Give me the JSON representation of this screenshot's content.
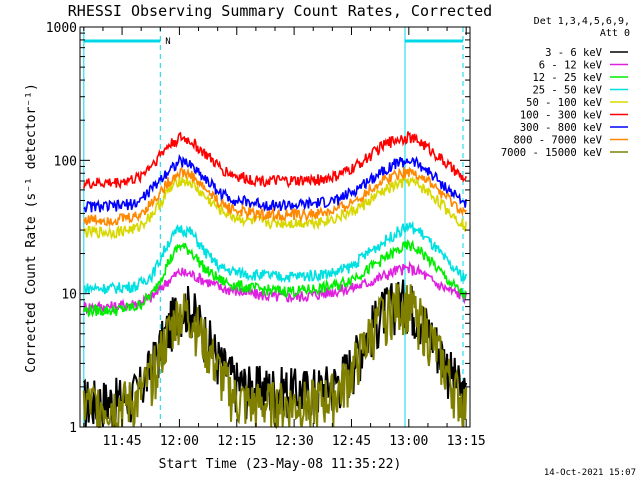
{
  "chart_data": {
    "type": "line",
    "title": "RHESSI Observing Summary Count Rates, Corrected",
    "xlabel": "Start Time (23-May-08 11:35:22)",
    "ylabel": "Corrected Count Rate (s⁻¹ detector⁻¹)",
    "yscale": "log",
    "ylim": [
      1,
      1000
    ],
    "xlim_minutes": [
      -1,
      101
    ],
    "x_ticks": [
      {
        "label": "11:45",
        "min": 10
      },
      {
        "label": "12:00",
        "min": 25
      },
      {
        "label": "12:15",
        "min": 40
      },
      {
        "label": "12:30",
        "min": 55
      },
      {
        "label": "12:45",
        "min": 70
      },
      {
        "label": "13:00",
        "min": 85
      },
      {
        "label": "13:15",
        "min": 100
      }
    ],
    "y_ticks": [
      {
        "label": "1",
        "value": 1
      },
      {
        "label": "10",
        "value": 10
      },
      {
        "label": "100",
        "value": 100
      },
      {
        "label": "1000",
        "value": 1000
      }
    ],
    "legend_header": [
      "Det 1,3,4,5,6,9,",
      "Att 0"
    ],
    "legend_position": "right",
    "interval_markers": [
      {
        "label": "N",
        "start_min": 0,
        "end_min": 20
      },
      {
        "label": "",
        "start_min": 84,
        "end_min": 102
      }
    ],
    "series": [
      {
        "name": "3 - 6 keV",
        "color": "#000000",
        "x": [
          0,
          8,
          14,
          18,
          22,
          25,
          28,
          32,
          36,
          40,
          44,
          50,
          56,
          62,
          66,
          70,
          74,
          78,
          82,
          85,
          88,
          92,
          96,
          100
        ],
        "values": [
          1.6,
          1.6,
          1.8,
          3.0,
          5.5,
          8.5,
          8.0,
          5.0,
          3.0,
          2.2,
          2.0,
          2.0,
          1.9,
          2.0,
          2.2,
          3.0,
          5.0,
          7.5,
          9.0,
          9.0,
          7.0,
          4.5,
          2.6,
          1.6
        ]
      },
      {
        "name": "6 - 12 keV",
        "color": "#e020e0",
        "x": [
          0,
          8,
          14,
          18,
          22,
          25,
          28,
          32,
          36,
          40,
          44,
          50,
          56,
          62,
          66,
          70,
          74,
          78,
          82,
          85,
          88,
          92,
          96,
          100
        ],
        "values": [
          8.0,
          8.0,
          8.5,
          9.5,
          12.5,
          14.5,
          14.0,
          12.5,
          11.0,
          10.5,
          10.0,
          9.5,
          9.5,
          10.0,
          10.5,
          11.0,
          12.0,
          13.5,
          15.0,
          15.5,
          14.5,
          12.0,
          10.5,
          9.5
        ]
      },
      {
        "name": "12 - 25 keV",
        "color": "#00ee00",
        "x": [
          0,
          8,
          14,
          18,
          22,
          25,
          28,
          32,
          36,
          40,
          44,
          50,
          56,
          62,
          66,
          70,
          74,
          78,
          82,
          85,
          88,
          92,
          96,
          100
        ],
        "values": [
          7.5,
          7.5,
          8.0,
          10.0,
          17.0,
          23.0,
          21.0,
          15.0,
          12.5,
          11.5,
          11.0,
          10.5,
          10.5,
          11.0,
          11.5,
          13.0,
          15.0,
          18.0,
          21.0,
          23.0,
          21.0,
          16.0,
          12.0,
          9.5
        ]
      },
      {
        "name": "25 - 50 keV",
        "color": "#00e0e0",
        "x": [
          0,
          8,
          14,
          18,
          22,
          25,
          28,
          32,
          36,
          40,
          44,
          50,
          56,
          62,
          66,
          70,
          74,
          78,
          82,
          85,
          88,
          92,
          96,
          100
        ],
        "values": [
          11.0,
          11.0,
          11.5,
          14.0,
          24.0,
          31.0,
          29.0,
          20.0,
          15.5,
          14.5,
          14.0,
          13.5,
          13.5,
          14.0,
          14.5,
          16.0,
          20.0,
          24.0,
          29.0,
          32.0,
          29.0,
          22.0,
          16.0,
          13.0
        ]
      },
      {
        "name": "50 - 100 keV",
        "color": "#d8d800",
        "x": [
          0,
          8,
          14,
          18,
          22,
          25,
          28,
          32,
          36,
          40,
          44,
          50,
          56,
          62,
          66,
          70,
          74,
          78,
          82,
          85,
          88,
          92,
          96,
          100
        ],
        "values": [
          29,
          29,
          31,
          40,
          58,
          72,
          68,
          52,
          42,
          37,
          35,
          34,
          34,
          35,
          37,
          41,
          48,
          58,
          66,
          70,
          64,
          52,
          40,
          32
        ]
      },
      {
        "name": "100 - 300 keV",
        "color": "#ff0000",
        "x": [
          0,
          8,
          14,
          18,
          22,
          25,
          28,
          32,
          36,
          40,
          44,
          50,
          56,
          62,
          66,
          70,
          74,
          78,
          82,
          85,
          88,
          92,
          96,
          100
        ],
        "values": [
          67,
          68,
          73,
          95,
          128,
          148,
          140,
          110,
          86,
          76,
          72,
          70,
          70,
          72,
          76,
          86,
          104,
          128,
          146,
          150,
          138,
          112,
          88,
          70
        ]
      },
      {
        "name": "300 - 800 keV",
        "color": "#0000ff",
        "x": [
          0,
          8,
          14,
          18,
          22,
          25,
          28,
          32,
          36,
          40,
          44,
          50,
          56,
          62,
          66,
          70,
          74,
          78,
          82,
          85,
          88,
          92,
          96,
          100
        ],
        "values": [
          45,
          45,
          48,
          62,
          84,
          98,
          93,
          72,
          56,
          50,
          48,
          46,
          46,
          48,
          50,
          57,
          69,
          84,
          96,
          100,
          92,
          74,
          58,
          47
        ]
      },
      {
        "name": "800 - 7000 keV",
        "color": "#ff8800",
        "x": [
          0,
          8,
          14,
          18,
          22,
          25,
          28,
          32,
          36,
          40,
          44,
          50,
          56,
          62,
          66,
          70,
          74,
          78,
          82,
          85,
          88,
          92,
          96,
          100
        ],
        "values": [
          36,
          36,
          38,
          49,
          68,
          82,
          78,
          60,
          47,
          42,
          40,
          39,
          39,
          40,
          42,
          48,
          58,
          70,
          80,
          83,
          77,
          62,
          49,
          39
        ]
      },
      {
        "name": "7000 - 15000 keV",
        "color": "#808000",
        "x": [
          0,
          8,
          14,
          18,
          22,
          25,
          28,
          32,
          36,
          40,
          44,
          50,
          56,
          62,
          66,
          70,
          74,
          78,
          82,
          85,
          88,
          92,
          96,
          100
        ],
        "values": [
          1.5,
          1.5,
          1.6,
          2.6,
          5.0,
          7.5,
          7.0,
          4.2,
          2.4,
          1.6,
          1.5,
          1.5,
          1.5,
          1.6,
          1.8,
          2.6,
          4.5,
          7.0,
          8.5,
          8.5,
          6.5,
          4.0,
          2.2,
          1.4
        ]
      }
    ],
    "footer_timestamp": "14-Oct-2021 15:07"
  }
}
